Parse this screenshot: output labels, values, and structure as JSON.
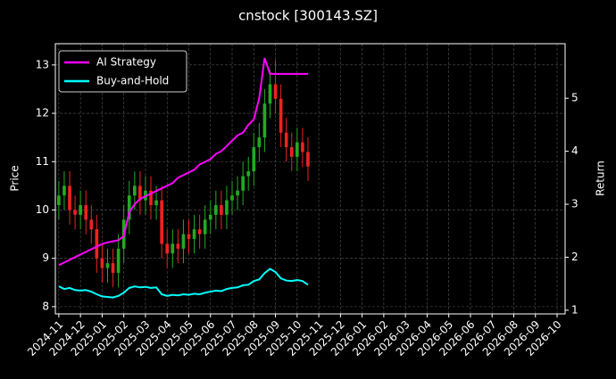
{
  "chart_data": {
    "type": "candlestick",
    "title": "cnstock [300143.SZ]",
    "ylabel": "Price",
    "y2label": "Return",
    "x": [
      0,
      0.25,
      0.5,
      0.75,
      1,
      1.25,
      1.5,
      1.75,
      2,
      2.25,
      2.5,
      2.75,
      3,
      3.25,
      3.5,
      3.75,
      4,
      4.25,
      4.5,
      4.75,
      5,
      5.25,
      5.5,
      5.75,
      6,
      6.25,
      6.5,
      6.75,
      7,
      7.25,
      7.5,
      7.75,
      8,
      8.25,
      8.5,
      8.75,
      9,
      9.25,
      9.5,
      9.75,
      10,
      10.25,
      10.5,
      10.75,
      11,
      11.25,
      11.5
    ],
    "open": [
      10.1,
      10.3,
      10.5,
      10.0,
      9.9,
      10.1,
      9.8,
      9.6,
      9.0,
      8.8,
      8.9,
      8.7,
      9.2,
      9.8,
      10.3,
      10.5,
      10.2,
      10.4,
      10.1,
      10.2,
      9.3,
      9.1,
      9.3,
      9.2,
      9.5,
      9.4,
      9.6,
      9.5,
      9.8,
      9.9,
      10.1,
      9.9,
      10.2,
      10.3,
      10.4,
      10.7,
      10.8,
      11.3,
      11.5,
      12.2,
      12.6,
      12.3,
      11.6,
      11.3,
      11.1,
      11.4,
      11.2
    ],
    "high": [
      10.6,
      10.8,
      10.8,
      10.3,
      10.4,
      10.4,
      10.1,
      9.9,
      9.3,
      9.2,
      9.2,
      9.5,
      10.1,
      10.6,
      10.8,
      10.8,
      10.7,
      10.7,
      10.5,
      10.5,
      9.6,
      9.6,
      9.6,
      9.8,
      9.8,
      9.9,
      9.9,
      10.1,
      10.2,
      10.4,
      10.4,
      10.5,
      10.6,
      10.7,
      11.0,
      11.1,
      11.6,
      11.8,
      12.5,
      12.9,
      13.1,
      12.6,
      11.9,
      11.6,
      11.7,
      11.7,
      11.5
    ],
    "low": [
      9.8,
      10.0,
      9.7,
      9.6,
      9.6,
      9.5,
      9.3,
      8.7,
      8.5,
      8.5,
      8.4,
      8.4,
      8.9,
      9.5,
      10.0,
      9.9,
      9.9,
      9.8,
      9.8,
      9.0,
      8.8,
      8.8,
      8.9,
      8.9,
      9.1,
      9.1,
      9.2,
      9.2,
      9.5,
      9.6,
      9.6,
      9.6,
      9.9,
      10.0,
      10.1,
      10.4,
      10.5,
      11.0,
      11.2,
      11.9,
      12.0,
      11.3,
      11.0,
      10.8,
      10.8,
      10.9,
      10.6
    ],
    "close": [
      10.3,
      10.5,
      10.0,
      9.9,
      10.1,
      9.8,
      9.6,
      9.0,
      8.8,
      8.9,
      8.7,
      9.2,
      9.8,
      10.3,
      10.5,
      10.2,
      10.4,
      10.1,
      10.2,
      9.3,
      9.1,
      9.3,
      9.2,
      9.5,
      9.4,
      9.6,
      9.5,
      9.8,
      9.9,
      10.1,
      9.9,
      10.2,
      10.3,
      10.4,
      10.7,
      10.8,
      11.3,
      11.5,
      12.2,
      12.6,
      12.3,
      11.6,
      11.3,
      11.1,
      11.4,
      11.2,
      10.9
    ],
    "up_color": "#22aa22",
    "down_color": "#ee2222",
    "series": [
      {
        "name": "AI Strategy",
        "color": "#ff00ff",
        "axis": "y2",
        "values": [
          1.85,
          1.9,
          1.95,
          2.0,
          2.05,
          2.1,
          2.15,
          2.2,
          2.25,
          2.28,
          2.3,
          2.32,
          2.4,
          2.85,
          3.0,
          3.1,
          3.15,
          3.2,
          3.25,
          3.3,
          3.35,
          3.4,
          3.5,
          3.55,
          3.6,
          3.65,
          3.75,
          3.8,
          3.85,
          3.95,
          4.0,
          4.1,
          4.2,
          4.3,
          4.35,
          4.5,
          4.6,
          5.0,
          5.76,
          5.46,
          5.46,
          5.46,
          5.46,
          5.46,
          5.46,
          5.46,
          5.46
        ]
      },
      {
        "name": "Buy-and-Hold",
        "color": "#00ffff",
        "axis": "y2",
        "values": [
          1.45,
          1.4,
          1.42,
          1.38,
          1.37,
          1.38,
          1.35,
          1.3,
          1.26,
          1.25,
          1.24,
          1.27,
          1.33,
          1.42,
          1.45,
          1.43,
          1.44,
          1.42,
          1.43,
          1.3,
          1.27,
          1.29,
          1.28,
          1.3,
          1.29,
          1.31,
          1.3,
          1.33,
          1.35,
          1.37,
          1.36,
          1.4,
          1.42,
          1.43,
          1.47,
          1.48,
          1.55,
          1.58,
          1.7,
          1.78,
          1.72,
          1.6,
          1.56,
          1.55,
          1.57,
          1.55,
          1.48
        ]
      }
    ],
    "xlim": [
      -0.16,
      23.37
    ],
    "xticks": [
      {
        "value": 0,
        "label": "2024-11"
      },
      {
        "value": 1,
        "label": "2024-12"
      },
      {
        "value": 2,
        "label": "2025-01"
      },
      {
        "value": 3,
        "label": "2025-02"
      },
      {
        "value": 4,
        "label": "2025-03"
      },
      {
        "value": 5,
        "label": "2025-04"
      },
      {
        "value": 6,
        "label": "2025-05"
      },
      {
        "value": 7,
        "label": "2025-06"
      },
      {
        "value": 8,
        "label": "2025-07"
      },
      {
        "value": 9,
        "label": "2025-08"
      },
      {
        "value": 10,
        "label": "2025-09"
      },
      {
        "value": 11,
        "label": "2025-10"
      },
      {
        "value": 12,
        "label": "2025-11"
      },
      {
        "value": 13,
        "label": "2025-12"
      },
      {
        "value": 14,
        "label": "2026-01"
      },
      {
        "value": 15,
        "label": "2026-02"
      },
      {
        "value": 16,
        "label": "2026-03"
      },
      {
        "value": 17,
        "label": "2026-04"
      },
      {
        "value": 18,
        "label": "2026-05"
      },
      {
        "value": 19,
        "label": "2026-06"
      },
      {
        "value": 20,
        "label": "2026-07"
      },
      {
        "value": 21,
        "label": "2026-08"
      },
      {
        "value": 22,
        "label": "2026-09"
      },
      {
        "value": 23,
        "label": "2026-10"
      }
    ],
    "ylim": [
      7.85,
      13.44
    ],
    "yticks": [
      8,
      9,
      10,
      11,
      12,
      13
    ],
    "y2lim": [
      0.93,
      6.03
    ],
    "y2ticks": [
      1,
      2,
      3,
      4,
      5
    ],
    "grid": true,
    "legend": "upper left"
  }
}
